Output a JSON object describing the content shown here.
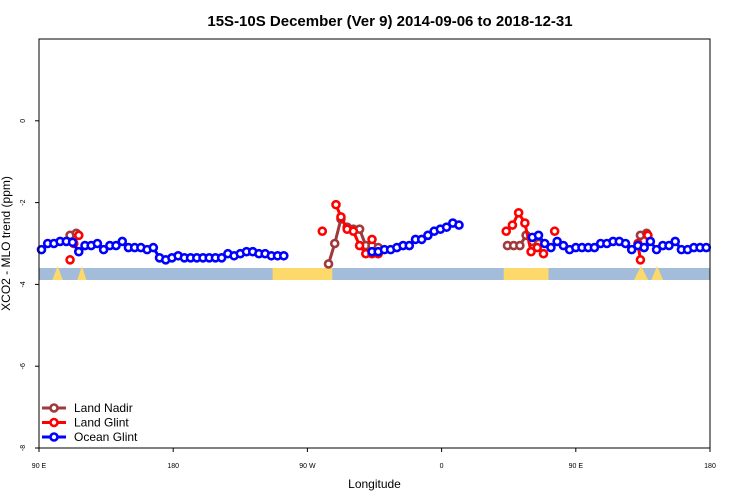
{
  "chart_data": {
    "type": "line",
    "title": "15S-10S December (Ver 9)   2014-09-06 to 2018-12-31",
    "xlabel": "Longitude",
    "ylabel": "XCO2 - MLO trend (ppm)",
    "xlim": [
      -90,
      180
    ],
    "ylim": [
      -8,
      2
    ],
    "x_ticks": [
      {
        "value": -90,
        "label": "90 E"
      },
      {
        "value": -36,
        "label": "180"
      },
      {
        "value": 18,
        "label": "90 W"
      },
      {
        "value": 72,
        "label": "0"
      },
      {
        "value": 126,
        "label": "90 E"
      },
      {
        "value": 180,
        "label": "180"
      }
    ],
    "y_ticks": [
      0,
      -2,
      -4,
      -6,
      -8
    ],
    "legend_position": "bottom-left",
    "series": [
      {
        "name": "Land Nadir",
        "color": "#a0393b",
        "segments": [
          [
            [
              -77.5,
              -2.8
            ],
            [
              -75,
              -2.75
            ]
          ],
          [
            [
              26.5,
              -3.5
            ],
            [
              29,
              -3.0
            ],
            [
              31.5,
              -2.4
            ],
            [
              34,
              -2.6
            ],
            [
              36.5,
              -2.65
            ],
            [
              39,
              -2.65
            ],
            [
              41.5,
              -3.05
            ],
            [
              44,
              -3.05
            ],
            [
              46.5,
              -3.1
            ]
          ],
          [
            [
              98.5,
              -3.05
            ],
            [
              101,
              -3.05
            ],
            [
              103.5,
              -3.05
            ],
            [
              106,
              -2.8
            ],
            [
              108.5,
              -2.95
            ],
            [
              111,
              -3.0
            ]
          ],
          [
            [
              152,
              -2.8
            ],
            [
              154.5,
              -2.75
            ]
          ]
        ]
      },
      {
        "name": "Land Glint",
        "color": "#ff0000",
        "segments": [
          [
            [
              -76,
              -3.0
            ],
            [
              -74,
              -2.8
            ]
          ],
          [
            [
              -77.5,
              -3.4
            ]
          ],
          [
            [
              24,
              -2.7
            ]
          ],
          [
            [
              29.5,
              -2.05
            ],
            [
              31.5,
              -2.35
            ],
            [
              34,
              -2.65
            ],
            [
              36.5,
              -2.7
            ],
            [
              39,
              -3.05
            ],
            [
              41.5,
              -3.25
            ],
            [
              44,
              -3.25
            ],
            [
              46.5,
              -3.25
            ]
          ],
          [
            [
              44,
              -2.9
            ]
          ],
          [
            [
              98,
              -2.7
            ],
            [
              100.5,
              -2.55
            ],
            [
              103,
              -2.25
            ],
            [
              105.5,
              -2.5
            ],
            [
              108,
              -3.2
            ],
            [
              110.5,
              -3.1
            ],
            [
              113,
              -3.25
            ]
          ],
          [
            [
              117.5,
              -2.7
            ]
          ],
          [
            [
              151,
              -3.0
            ],
            [
              152,
              -3.4
            ]
          ],
          [
            [
              155,
              -2.8
            ]
          ]
        ]
      },
      {
        "name": "Ocean Glint",
        "color": "#0000ff",
        "segments": [
          [
            [
              -89,
              -3.15
            ],
            [
              -86.5,
              -3.0
            ],
            [
              -84,
              -3.0
            ],
            [
              -81.5,
              -2.95
            ],
            [
              -79,
              -2.95
            ],
            [
              -76.5,
              -2.97
            ],
            [
              -74,
              -3.2
            ],
            [
              -71.5,
              -3.05
            ],
            [
              -69,
              -3.05
            ],
            [
              -66.5,
              -3.0
            ],
            [
              -64,
              -3.15
            ],
            [
              -61.5,
              -3.05
            ],
            [
              -59,
              -3.05
            ],
            [
              -56.5,
              -2.95
            ],
            [
              -54,
              -3.1
            ],
            [
              -51.5,
              -3.1
            ],
            [
              -49,
              -3.1
            ],
            [
              -46.5,
              -3.15
            ],
            [
              -44,
              -3.1
            ],
            [
              -41.5,
              -3.35
            ],
            [
              -39,
              -3.4
            ],
            [
              -36.5,
              -3.35
            ],
            [
              -34,
              -3.3
            ],
            [
              -31.5,
              -3.35
            ],
            [
              -29,
              -3.35
            ],
            [
              -26.5,
              -3.35
            ],
            [
              -24,
              -3.35
            ],
            [
              -21.5,
              -3.35
            ],
            [
              -19,
              -3.35
            ],
            [
              -16.5,
              -3.35
            ],
            [
              -14,
              -3.25
            ],
            [
              -11.5,
              -3.3
            ],
            [
              -9,
              -3.25
            ],
            [
              -6.5,
              -3.2
            ],
            [
              -4,
              -3.2
            ],
            [
              -1.5,
              -3.25
            ],
            [
              1,
              -3.25
            ],
            [
              3.5,
              -3.3
            ],
            [
              6,
              -3.3
            ],
            [
              8.5,
              -3.3
            ]
          ],
          [
            [
              44,
              -3.2
            ],
            [
              46.5,
              -3.2
            ],
            [
              49,
              -3.15
            ],
            [
              51.5,
              -3.15
            ],
            [
              54,
              -3.1
            ],
            [
              56.5,
              -3.05
            ],
            [
              59,
              -3.05
            ],
            [
              61.5,
              -2.9
            ],
            [
              64,
              -2.9
            ],
            [
              66.5,
              -2.8
            ],
            [
              69,
              -2.7
            ],
            [
              71.5,
              -2.65
            ],
            [
              74,
              -2.6
            ],
            [
              76.5,
              -2.5
            ],
            [
              79,
              -2.55
            ]
          ],
          [
            [
              108.5,
              -2.85
            ],
            [
              111,
              -2.8
            ],
            [
              113.5,
              -3.0
            ],
            [
              116,
              -3.1
            ],
            [
              118.5,
              -2.95
            ],
            [
              121,
              -3.05
            ],
            [
              123.5,
              -3.15
            ],
            [
              126,
              -3.1
            ],
            [
              128.5,
              -3.1
            ],
            [
              131,
              -3.1
            ],
            [
              133.5,
              -3.1
            ],
            [
              136,
              -3.0
            ],
            [
              138.5,
              -3.0
            ],
            [
              141,
              -2.95
            ],
            [
              143.5,
              -2.95
            ],
            [
              146,
              -3.0
            ],
            [
              148.5,
              -3.15
            ],
            [
              151,
              -3.05
            ],
            [
              153.5,
              -3.1
            ],
            [
              156,
              -2.95
            ],
            [
              158.5,
              -3.15
            ],
            [
              161,
              -3.05
            ],
            [
              163.5,
              -3.05
            ],
            [
              166,
              -2.95
            ],
            [
              168.5,
              -3.15
            ],
            [
              171,
              -3.15
            ],
            [
              173.5,
              -3.1
            ],
            [
              176,
              -3.1
            ],
            [
              178.5,
              -3.1
            ]
          ]
        ]
      }
    ],
    "land_strip": {
      "ocean_color": "#a3bcd9",
      "land_color": "#fdd86b",
      "land_ranges": [
        [
          4,
          28
        ],
        [
          97,
          115
        ]
      ],
      "land_spikes": [
        [
          -83,
          -82
        ],
        [
          -73,
          -72.5
        ],
        [
          151,
          153.5
        ],
        [
          158,
          159.5
        ]
      ]
    }
  }
}
